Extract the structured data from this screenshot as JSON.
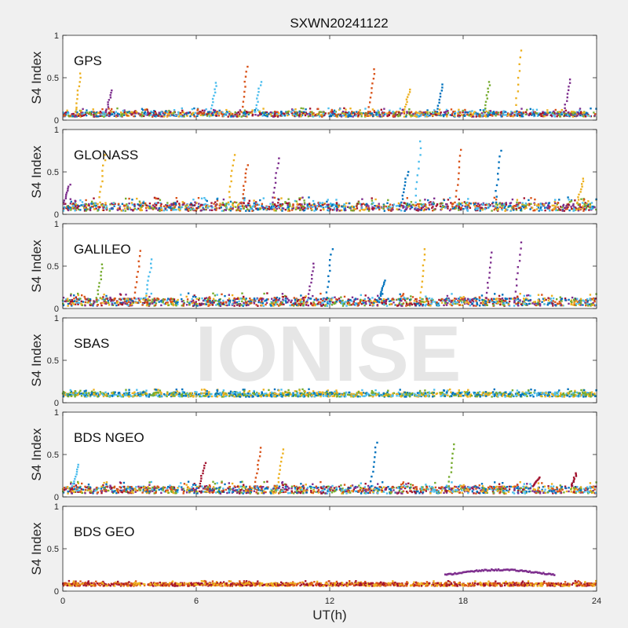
{
  "title": "SXWN20241122",
  "watermark": "IONISE",
  "chart_data": [
    {
      "type": "scatter",
      "label": "GPS",
      "ylabel": "S4 Index",
      "ylim": [
        0,
        1
      ],
      "yticks": [
        "0",
        "0.5",
        "1"
      ],
      "xlim": [
        0,
        24
      ],
      "baseline": [
        0.04,
        0.14
      ],
      "spikes": [
        {
          "x": 0.8,
          "y": 0.55,
          "series": 2
        },
        {
          "x": 2.2,
          "y": 0.35,
          "series": 3
        },
        {
          "x": 6.9,
          "y": 0.44,
          "series": 5
        },
        {
          "x": 8.3,
          "y": 0.63,
          "series": 1
        },
        {
          "x": 8.9,
          "y": 0.45,
          "series": 5
        },
        {
          "x": 14.0,
          "y": 0.6,
          "series": 1
        },
        {
          "x": 15.6,
          "y": 0.36,
          "series": 2
        },
        {
          "x": 17.1,
          "y": 0.42,
          "series": 0
        },
        {
          "x": 19.2,
          "y": 0.45,
          "series": 4
        },
        {
          "x": 20.6,
          "y": 0.82,
          "series": 2
        },
        {
          "x": 22.8,
          "y": 0.48,
          "series": 3
        }
      ]
    },
    {
      "type": "scatter",
      "label": "GLONASS",
      "ylabel": "S4 Index",
      "ylim": [
        0,
        1
      ],
      "yticks": [
        "0",
        "0.5",
        "1"
      ],
      "xlim": [
        0,
        24
      ],
      "baseline": [
        0.04,
        0.2
      ],
      "spikes": [
        {
          "x": 0.3,
          "y": 0.35,
          "series": 3
        },
        {
          "x": 1.9,
          "y": 0.7,
          "series": 2
        },
        {
          "x": 7.7,
          "y": 0.7,
          "series": 2
        },
        {
          "x": 8.3,
          "y": 0.58,
          "series": 1
        },
        {
          "x": 9.7,
          "y": 0.66,
          "series": 3
        },
        {
          "x": 15.5,
          "y": 0.5,
          "series": 0
        },
        {
          "x": 16.1,
          "y": 0.86,
          "series": 5
        },
        {
          "x": 17.9,
          "y": 0.76,
          "series": 1
        },
        {
          "x": 19.7,
          "y": 0.75,
          "series": 0
        },
        {
          "x": 23.4,
          "y": 0.42,
          "series": 2
        }
      ]
    },
    {
      "type": "scatter",
      "label": "GALILEO",
      "ylabel": "S4 Index",
      "ylim": [
        0,
        1
      ],
      "yticks": [
        "0",
        "0.5",
        "1"
      ],
      "xlim": [
        0,
        24
      ],
      "baseline": [
        0.03,
        0.18
      ],
      "spikes": [
        {
          "x": 1.8,
          "y": 0.52,
          "series": 4
        },
        {
          "x": 3.5,
          "y": 0.68,
          "series": 1
        },
        {
          "x": 4.0,
          "y": 0.58,
          "series": 5
        },
        {
          "x": 11.3,
          "y": 0.53,
          "series": 3
        },
        {
          "x": 12.1,
          "y": 0.7,
          "series": 0
        },
        {
          "x": 14.5,
          "y": 0.33,
          "series": 0
        },
        {
          "x": 16.3,
          "y": 0.7,
          "series": 2
        },
        {
          "x": 19.3,
          "y": 0.66,
          "series": 3
        },
        {
          "x": 20.6,
          "y": 0.78,
          "series": 3
        }
      ]
    },
    {
      "type": "scatter",
      "label": "SBAS",
      "ylabel": "S4 Index",
      "ylim": [
        0,
        1
      ],
      "yticks": [
        "0",
        "0.5",
        "1"
      ],
      "xlim": [
        0,
        24
      ],
      "baseline": [
        0.07,
        0.16
      ],
      "spikes": []
    },
    {
      "type": "scatter",
      "label": "BDS NGEO",
      "ylabel": "S4 Index",
      "ylim": [
        0,
        1
      ],
      "yticks": [
        "0",
        "0.5",
        "1"
      ],
      "xlim": [
        0,
        24
      ],
      "baseline": [
        0.04,
        0.18
      ],
      "spikes": [
        {
          "x": 0.7,
          "y": 0.38,
          "series": 5
        },
        {
          "x": 6.4,
          "y": 0.4,
          "series": 6
        },
        {
          "x": 8.9,
          "y": 0.58,
          "series": 1
        },
        {
          "x": 9.9,
          "y": 0.56,
          "series": 2
        },
        {
          "x": 14.1,
          "y": 0.64,
          "series": 0
        },
        {
          "x": 17.6,
          "y": 0.62,
          "series": 4
        },
        {
          "x": 21.4,
          "y": 0.23,
          "series": 6
        },
        {
          "x": 23.1,
          "y": 0.28,
          "series": 6
        }
      ]
    },
    {
      "type": "scatter",
      "label": "BDS GEO",
      "ylabel": "S4 Index",
      "ylim": [
        0,
        1
      ],
      "yticks": [
        "0",
        "0.5",
        "1"
      ],
      "xlim": [
        0,
        24
      ],
      "xticks": [
        "0",
        "6",
        "12",
        "18",
        "24"
      ],
      "xlabel": "UT(h)",
      "baseline": [
        0.06,
        0.12
      ],
      "arc": {
        "x0": 17.2,
        "x1": 22.1,
        "ystart": 0.19,
        "ypeak": 0.25,
        "series": 3
      },
      "spikes": []
    }
  ],
  "colors": [
    "#0072BD",
    "#D95319",
    "#EDB120",
    "#7E2F8E",
    "#77AC30",
    "#4DBEEE",
    "#A2142F"
  ]
}
